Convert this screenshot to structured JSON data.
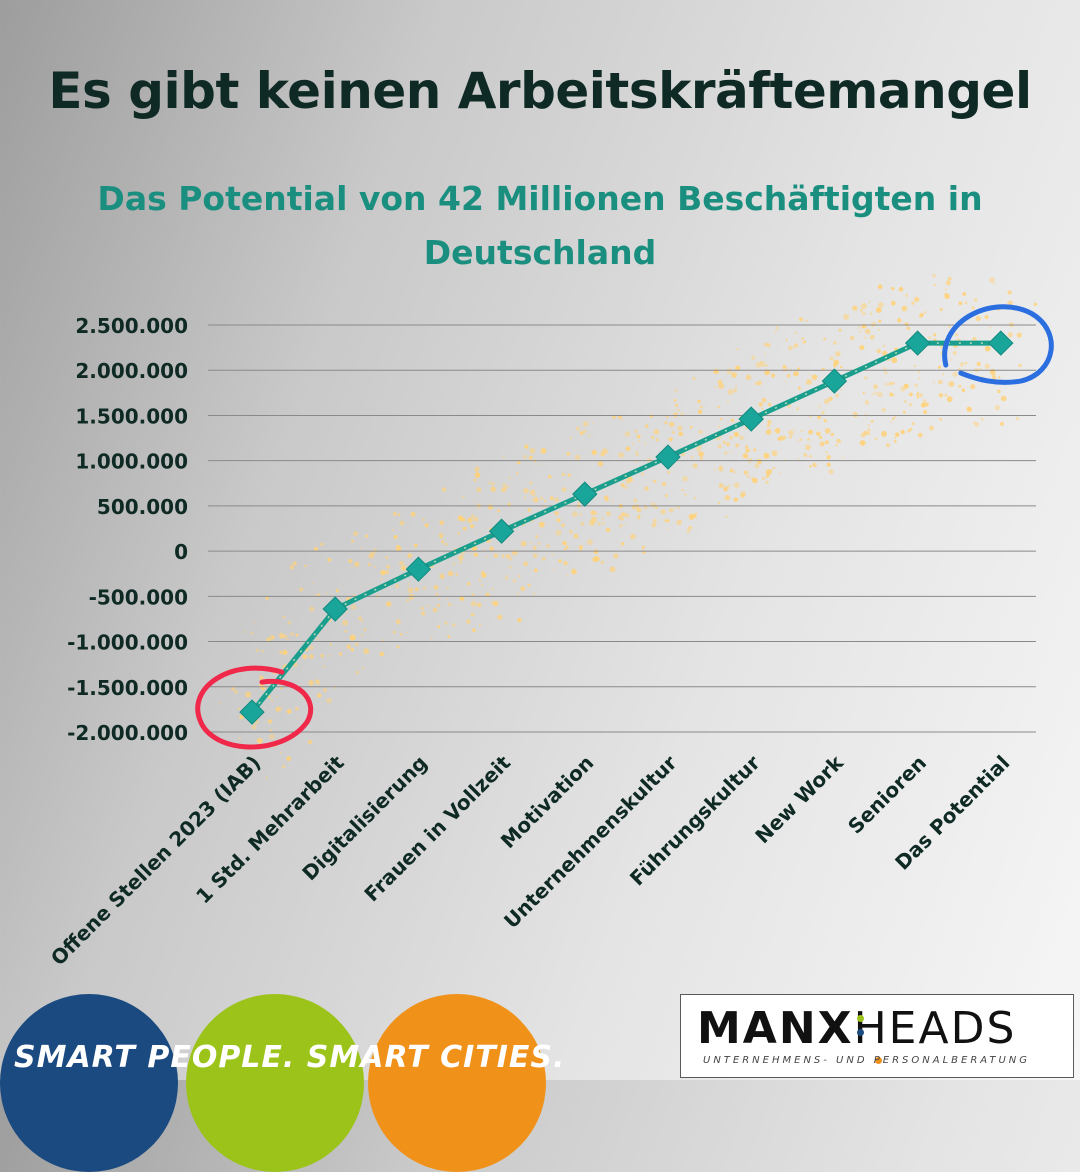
{
  "title": "Es gibt keinen Arbeitskräftemangel",
  "subtitle": "Das Potential von 42 Millionen Beschäftigten in Deutschland",
  "colors": {
    "line": "#1a9e8e",
    "marker": "#1aa59a",
    "sparkle": "#ffd27a",
    "highlight_start": "#f0284a",
    "highlight_end": "#2a6ee0",
    "accent_blue": "#1a4a80",
    "accent_green": "#9cc31a",
    "accent_orange": "#f0921a"
  },
  "chart_data": {
    "type": "line",
    "categories": [
      "Offene Stellen 2023 (IAB)",
      "1 Std. Mehrarbeit",
      "Digitalisierung",
      "Frauen in Vollzeit",
      "Motivation",
      "Unternehmenskultur",
      "Führungskultur",
      "New Work",
      "Senioren",
      "Das Potential"
    ],
    "values": [
      -1780000,
      -640000,
      -200000,
      220000,
      630000,
      1040000,
      1460000,
      1880000,
      2300000,
      2300000
    ],
    "ylim": [
      -2000000,
      2500000
    ],
    "yticks": [
      2500000,
      2000000,
      1500000,
      1000000,
      500000,
      0,
      -500000,
      -1000000,
      -1500000,
      -2000000
    ],
    "ytick_labels": [
      "2.500.000",
      "2.000.000",
      "1.500.000",
      "1.000.000",
      "500.000",
      "0",
      "-500.000",
      "-1.000.000",
      "-1.500.000",
      "-2.000.000"
    ],
    "grid": true,
    "marker": "diamond-icon",
    "highlights": [
      "first",
      "last"
    ]
  },
  "footer": {
    "slogan": "SMART PEOPLE. SMART CITIES.",
    "logo_manx": "MANX",
    "logo_heads": "HEADS",
    "logo_tagline": "UNTERNEHMENS- UND PERSONALBERATUNG"
  }
}
